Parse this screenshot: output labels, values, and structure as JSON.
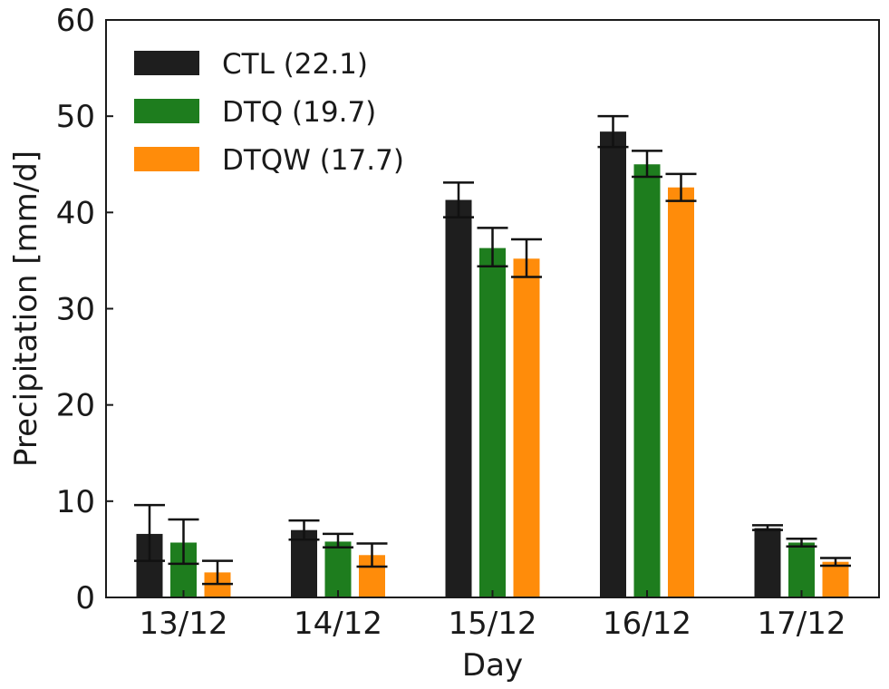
{
  "chart_data": {
    "type": "bar",
    "categories": [
      "13/12",
      "14/12",
      "15/12",
      "16/12",
      "17/12"
    ],
    "series": [
      {
        "name": "CTL (22.1)",
        "color": "#1e1e1e",
        "values": [
          6.6,
          7.0,
          41.3,
          48.4,
          7.2
        ],
        "err_low": [
          3.8,
          6.0,
          39.5,
          46.8,
          7.0
        ],
        "err_high": [
          9.6,
          8.0,
          43.1,
          50.0,
          7.5
        ]
      },
      {
        "name": "DTQ (19.7)",
        "color": "#1e7d1e",
        "values": [
          5.7,
          5.8,
          36.3,
          45.0,
          5.7
        ],
        "err_low": [
          3.5,
          5.2,
          34.4,
          43.7,
          5.3
        ],
        "err_high": [
          8.1,
          6.6,
          38.4,
          46.4,
          6.1
        ]
      },
      {
        "name": "DTQW (17.7)",
        "color": "#ff8c0a",
        "values": [
          2.6,
          4.4,
          35.2,
          42.6,
          3.7
        ],
        "err_low": [
          1.4,
          3.2,
          33.3,
          41.2,
          3.3
        ],
        "err_high": [
          3.8,
          5.6,
          37.2,
          44.0,
          4.1
        ]
      }
    ],
    "xlabel": "Day",
    "ylabel": "Precipitation [mm/d]",
    "ylim": [
      0,
      60
    ],
    "yticks": [
      "0",
      "10",
      "20",
      "30",
      "40",
      "50",
      "60"
    ],
    "grid": false,
    "legend": "top-left"
  }
}
